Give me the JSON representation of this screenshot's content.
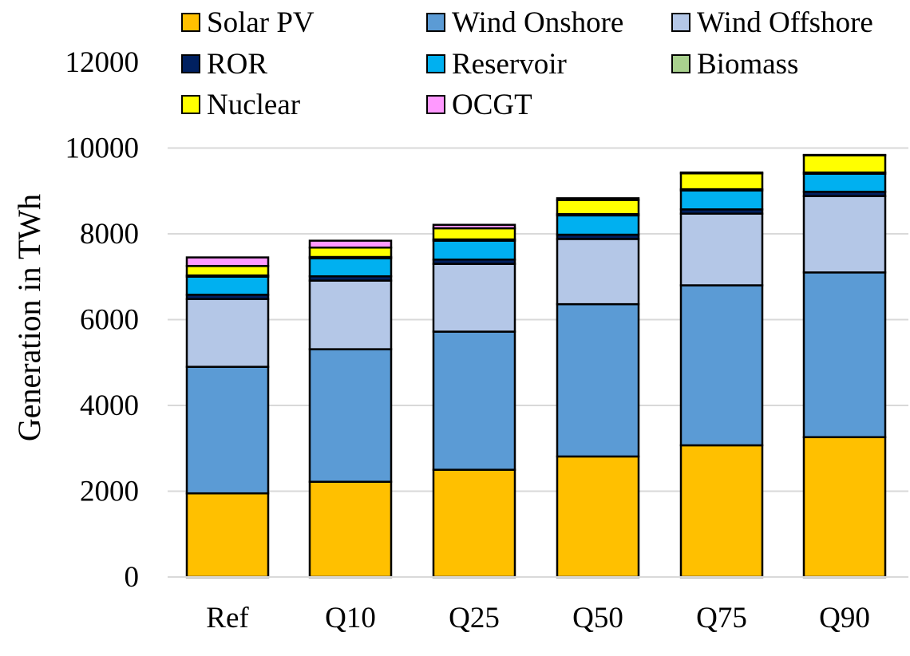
{
  "chart_data": {
    "type": "bar",
    "stacked": true,
    "title": "",
    "xlabel": "",
    "ylabel": "Generation in TWh",
    "ylim": [
      0,
      12000
    ],
    "yticks": [
      0,
      2000,
      4000,
      6000,
      8000,
      10000,
      12000
    ],
    "grid": true,
    "legend_position": "top",
    "categories": [
      "Ref",
      "Q10",
      "Q25",
      "Q50",
      "Q75",
      "Q90"
    ],
    "series": [
      {
        "name": "Solar PV",
        "color": "#FFC000",
        "values": [
          1950,
          2220,
          2500,
          2810,
          3070,
          3260
        ]
      },
      {
        "name": "Wind Onshore",
        "color": "#5B9BD5",
        "values": [
          2950,
          3090,
          3220,
          3550,
          3730,
          3840
        ]
      },
      {
        "name": "Wind Offshore",
        "color": "#B4C7E7",
        "values": [
          1580,
          1600,
          1580,
          1520,
          1670,
          1780
        ]
      },
      {
        "name": "ROR",
        "color": "#002060",
        "values": [
          100,
          100,
          100,
          100,
          100,
          100
        ]
      },
      {
        "name": "Reservoir",
        "color": "#00B0F0",
        "values": [
          420,
          420,
          440,
          450,
          440,
          420
        ]
      },
      {
        "name": "Biomass",
        "color": "#A9D18E",
        "values": [
          30,
          30,
          30,
          30,
          30,
          30
        ]
      },
      {
        "name": "Nuclear",
        "color": "#FFFF00",
        "values": [
          220,
          220,
          260,
          330,
          370,
          400
        ]
      },
      {
        "name": "OCGT",
        "color": "#FF99FF",
        "values": [
          200,
          160,
          80,
          40,
          20,
          10
        ]
      }
    ]
  }
}
